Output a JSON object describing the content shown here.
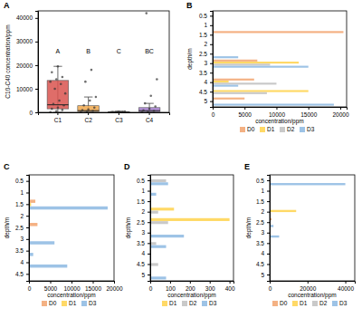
{
  "chart_data": [
    {
      "type": "box",
      "title": "A",
      "y_label": "C10-C40 concentration/ppm",
      "categories": [
        "C1",
        "C2",
        "C3",
        "C4"
      ],
      "annotations": [
        "A",
        "B",
        "C",
        "BC"
      ],
      "colors": [
        "#d9534f",
        "#f0a84e",
        "#5cb85c",
        "#a77fd1"
      ],
      "ylim": [
        0,
        43000
      ],
      "yticks": [
        0,
        10000,
        20000,
        30000,
        40000
      ],
      "boxes": [
        {
          "min": 0,
          "q1": 1500,
          "median": 3200,
          "q3": 13500,
          "max": 19500,
          "points": [
            100,
            500,
            1000,
            1500,
            2000,
            3000,
            3500,
            5000,
            8000,
            10000,
            12000,
            13000,
            14000,
            15000,
            17000,
            19500
          ]
        },
        {
          "min": 0,
          "q1": 300,
          "median": 700,
          "q3": 2800,
          "max": 6500,
          "points": [
            200,
            400,
            600,
            900,
            1200,
            2000,
            3000,
            5000,
            6500,
            13000,
            18000
          ]
        },
        {
          "min": 0,
          "q1": 50,
          "median": 100,
          "q3": 300,
          "max": 500,
          "points": [
            50,
            100,
            150,
            200,
            300,
            400
          ]
        },
        {
          "min": 0,
          "q1": 200,
          "median": 700,
          "q3": 2000,
          "max": 3800,
          "points": [
            100,
            300,
            600,
            800,
            1500,
            2500,
            3800,
            7000,
            14000,
            42000
          ]
        }
      ]
    },
    {
      "type": "bar",
      "orientation": "horizontal",
      "title": "B",
      "x_label": "concentration/ppm",
      "y_label": "depth/m",
      "categories": [
        "0.5",
        "1",
        "1.5",
        "2",
        "2.5",
        "3",
        "3.5",
        "4",
        "4.5",
        "5"
      ],
      "xlim": [
        0,
        21000
      ],
      "xticks": [
        0,
        5000,
        10000,
        15000,
        20000
      ],
      "legend": "bottom",
      "series": [
        {
          "name": "D0",
          "color": "#f4b183",
          "values": [
            null,
            null,
            20500,
            null,
            null,
            7000,
            null,
            6500,
            null,
            5000
          ]
        },
        {
          "name": "D1",
          "color": "#ffd966",
          "values": [
            null,
            null,
            null,
            null,
            null,
            13500,
            null,
            2500,
            15000,
            null
          ]
        },
        {
          "name": "D2",
          "color": "#c9c9c9",
          "values": [
            null,
            null,
            null,
            null,
            null,
            9000,
            null,
            10000,
            8500,
            null
          ]
        },
        {
          "name": "D3",
          "color": "#9dc3e6",
          "values": [
            null,
            null,
            null,
            null,
            4000,
            15000,
            null,
            4000,
            null,
            19000
          ]
        }
      ]
    },
    {
      "type": "bar",
      "orientation": "horizontal",
      "title": "C",
      "x_label": "concentration/ppm",
      "y_label": "depth/m",
      "categories": [
        "0.5",
        "1",
        "1.5",
        "2",
        "2.5",
        "3",
        "3.5",
        "4",
        "4.5"
      ],
      "xlim": [
        0,
        20000
      ],
      "xticks": [
        0,
        5000,
        10000,
        15000,
        20000
      ],
      "legend": "bottom",
      "series": [
        {
          "name": "D0",
          "color": "#f4b183",
          "values": [
            null,
            null,
            1500,
            null,
            2000,
            null,
            null,
            null,
            null
          ]
        },
        {
          "name": "D1",
          "color": "#ffd966",
          "values": [
            null,
            null,
            500,
            null,
            null,
            null,
            null,
            null,
            null
          ]
        },
        {
          "name": "D3",
          "color": "#9dc3e6",
          "values": [
            null,
            null,
            18500,
            null,
            null,
            6000,
            1000,
            9000,
            null
          ]
        }
      ]
    },
    {
      "type": "bar",
      "orientation": "horizontal",
      "title": "D",
      "x_label": "concentration/ppm",
      "y_label": "depth/m",
      "categories": [
        "0.5",
        "1",
        "1.5",
        "2",
        "2.5",
        "3",
        "3.5",
        "4",
        "4.5",
        "5"
      ],
      "xlim": [
        0,
        420
      ],
      "xticks": [
        0,
        100,
        200,
        300,
        400
      ],
      "legend": "bottom",
      "series": [
        {
          "name": "D1",
          "color": "#ffd966",
          "values": [
            null,
            null,
            null,
            120,
            400,
            null,
            null,
            null,
            null,
            null
          ]
        },
        {
          "name": "D2",
          "color": "#c9c9c9",
          "values": [
            80,
            null,
            null,
            40,
            90,
            null,
            30,
            null,
            40,
            null
          ]
        },
        {
          "name": "D3",
          "color": "#9dc3e6",
          "values": [
            90,
            30,
            null,
            null,
            null,
            170,
            80,
            null,
            null,
            80
          ]
        }
      ]
    },
    {
      "type": "bar",
      "orientation": "horizontal",
      "title": "E",
      "x_label": "concentration/ppm",
      "y_label": "depth/m",
      "categories": [
        "0.5",
        "1",
        "1.5",
        "2",
        "2.5",
        "3",
        "3.5",
        "4",
        "4.5",
        "5"
      ],
      "xlim": [
        0,
        45000
      ],
      "xticks": [
        0,
        20000,
        40000
      ],
      "legend": "bottom",
      "series": [
        {
          "name": "D0",
          "color": "#f4b183",
          "values": [
            null,
            null,
            null,
            null,
            1000,
            null,
            null,
            null,
            null,
            null
          ]
        },
        {
          "name": "D1",
          "color": "#ffd966",
          "values": [
            null,
            null,
            null,
            14000,
            null,
            null,
            null,
            null,
            null,
            null
          ]
        },
        {
          "name": "D2",
          "color": "#c9c9c9",
          "values": [
            null,
            null,
            null,
            null,
            null,
            500,
            null,
            null,
            null,
            null
          ]
        },
        {
          "name": "D3",
          "color": "#9dc3e6",
          "values": [
            40000,
            null,
            null,
            null,
            2000,
            5000,
            null,
            null,
            null,
            null
          ]
        }
      ]
    }
  ]
}
